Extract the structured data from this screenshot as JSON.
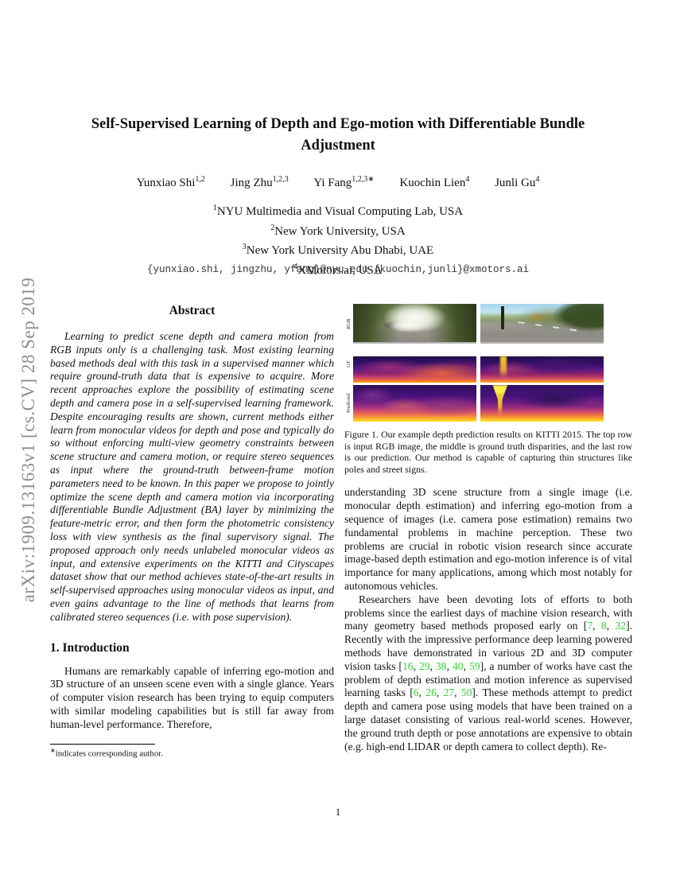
{
  "arxiv_label": "arXiv:1909.13163v1  [cs.CV]  28 Sep 2019",
  "title": "Self-Supervised Learning of Depth and Ego-motion with Differentiable Bundle Adjustment",
  "authors": [
    {
      "name": "Yunxiao Shi",
      "sup": "1,2"
    },
    {
      "name": "Jing Zhu",
      "sup": "1,2,3"
    },
    {
      "name": "Yi Fang",
      "sup": "1,2,3∗"
    },
    {
      "name": "Kuochin Lien",
      "sup": "4"
    },
    {
      "name": "Junli Gu",
      "sup": "4"
    }
  ],
  "affiliations": [
    {
      "sup": "1",
      "text": "NYU Multimedia and Visual Computing Lab, USA"
    },
    {
      "sup": "2",
      "text": "New York University, USA"
    },
    {
      "sup": "3",
      "text": "New York University Abu Dhabi, UAE"
    },
    {
      "sup": "4",
      "text": "XMotors.ai, USA"
    }
  ],
  "emails": "{yunxiao.shi, jingzhu, yfang}@nyu.edu {kuochin,junli}@xmotors.ai",
  "abstract": {
    "heading": "Abstract",
    "text": "Learning to predict scene depth and camera motion from RGB inputs only is a challenging task. Most existing learning based methods deal with this task in a supervised manner which require ground-truth data that is expensive to acquire. More recent approaches explore the possibility of estimating scene depth and camera pose in a self-supervised learning framework. Despite encouraging results are shown, current methods either learn from monocular videos for depth and pose and typically do so without enforcing multi-view geometry constraints between scene structure and camera motion, or require stereo sequences as input where the ground-truth between-frame motion parameters need to be known. In this paper we propose to jointly optimize the scene depth and camera motion via incorporating differentiable Bundle Adjustment (BA) layer by minimizing the feature-metric error, and then form the photometric consistency loss with view synthesis as the final supervisory signal. The proposed approach only needs unlabeled monocular videos as input, and extensive experiments on the KITTI and Cityscapes dataset show that our method achieves state-of-the-art results in self-supervised approaches using monocular videos as input, and even gains advantage to the line of methods that learns from calibrated stereo sequences (i.e. with pose supervision)."
  },
  "introduction": {
    "heading": "1. Introduction",
    "text": "Humans are remarkably capable of inferring ego-motion and 3D structure of an unseen scene even with a single glance. Years of computer vision research has been trying to equip computers with similar modeling capabilities but is still far away from human-level performance. Therefore,"
  },
  "footnote": {
    "marker": "∗",
    "text": "indicates corresponding author."
  },
  "figure": {
    "row_labels": [
      "RGB",
      "GT",
      "Predicted"
    ],
    "caption": "Figure 1. Our example depth prediction results on KITTI 2015. The top row is input RGB image, the middle is ground truth disparities, and the last row is our prediction. Our method is capable of capturing thin structures like poles and street signs."
  },
  "right_column": {
    "para1": "understanding 3D scene structure from a single image (i.e. monocular depth estimation) and inferring ego-motion from a sequence of images (i.e. camera pose estimation) remains two fundamental problems in machine perception. These two problems are crucial in robotic vision research since accurate image-based depth estimation and ego-motion inference is of vital importance for many applications, among which most notably for autonomous vehicles.",
    "para2_segments": [
      {
        "t": "Researchers have been devoting lots of efforts to both problems since the earliest days of machine vision research, with many geometry based methods proposed early on ["
      },
      {
        "t": "7",
        "c": "cite"
      },
      {
        "t": ", "
      },
      {
        "t": "8",
        "c": "cite"
      },
      {
        "t": ", "
      },
      {
        "t": "32",
        "c": "cite"
      },
      {
        "t": "]. Recently with the impressive performance deep learning powered methods have demonstrated in various 2D and 3D computer vision tasks ["
      },
      {
        "t": "16",
        "c": "cite"
      },
      {
        "t": ", "
      },
      {
        "t": "29",
        "c": "cite"
      },
      {
        "t": ", "
      },
      {
        "t": "38",
        "c": "cite"
      },
      {
        "t": ", "
      },
      {
        "t": "40",
        "c": "cite"
      },
      {
        "t": ", "
      },
      {
        "t": "59",
        "c": "cite"
      },
      {
        "t": "], a number of works have cast the problem of depth estimation and motion inference as supervised learning tasks ["
      },
      {
        "t": "6",
        "c": "cite"
      },
      {
        "t": ", "
      },
      {
        "t": "26",
        "c": "cite"
      },
      {
        "t": ", "
      },
      {
        "t": "27",
        "c": "cite"
      },
      {
        "t": ", "
      },
      {
        "t": "50",
        "c": "cite"
      },
      {
        "t": "]. These methods attempt to predict depth and camera pose using models that have been trained on a large dataset consisting of various real-world scenes. However, the ground truth depth or pose annotations are expensive to obtain (e.g. high-end LIDAR or depth camera to collect depth). Re-"
      }
    ]
  },
  "page_number": "1",
  "colors": {
    "citation_green": "#2fd42f",
    "sidebar_gray": "#8c8c8c",
    "depth_colormap_dark": "#1d1147",
    "depth_colormap_bright": "#fcdf24"
  }
}
